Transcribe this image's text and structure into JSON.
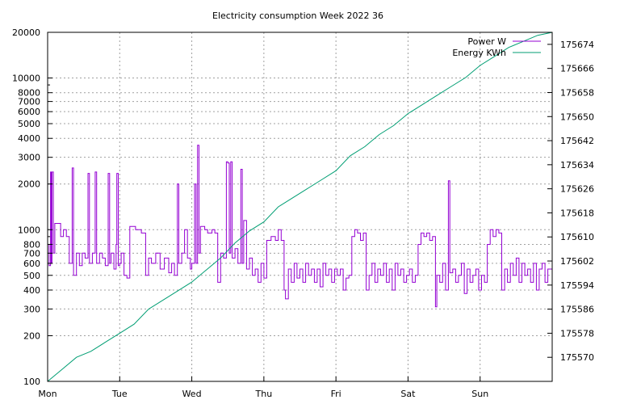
{
  "chart_data": {
    "type": "line",
    "title": "Electricity consumption Week 2022 36",
    "grid": true,
    "legend_position": "top-right",
    "x_axis": {
      "categories": [
        "Mon",
        "Tue",
        "Wed",
        "Thu",
        "Fri",
        "Sat",
        "Sun"
      ],
      "range_days": [
        0,
        7
      ]
    },
    "y_left": {
      "scale": "log",
      "range": [
        100,
        20000
      ],
      "ticks": [
        100,
        200,
        300,
        400,
        500,
        600,
        700,
        800,
        1000,
        2000,
        3000,
        4000,
        5000,
        6000,
        7000,
        8000,
        10000,
        20000
      ]
    },
    "y_right": {
      "scale": "linear",
      "range": [
        175562,
        175678
      ],
      "ticks": [
        175570,
        175578,
        175586,
        175594,
        175602,
        175610,
        175618,
        175626,
        175634,
        175642,
        175650,
        175658,
        175666,
        175674
      ]
    },
    "series": [
      {
        "name": "Power W",
        "axis": "left",
        "color": "#9400d3",
        "points": [
          [
            0.0,
            800
          ],
          [
            0.02,
            580
          ],
          [
            0.04,
            2400
          ],
          [
            0.05,
            600
          ],
          [
            0.06,
            2400
          ],
          [
            0.08,
            700
          ],
          [
            0.1,
            1100
          ],
          [
            0.14,
            1100
          ],
          [
            0.18,
            900
          ],
          [
            0.22,
            1000
          ],
          [
            0.26,
            900
          ],
          [
            0.3,
            600
          ],
          [
            0.34,
            2550
          ],
          [
            0.36,
            500
          ],
          [
            0.4,
            700
          ],
          [
            0.44,
            580
          ],
          [
            0.48,
            700
          ],
          [
            0.52,
            650
          ],
          [
            0.56,
            2350
          ],
          [
            0.58,
            600
          ],
          [
            0.62,
            700
          ],
          [
            0.66,
            2400
          ],
          [
            0.68,
            600
          ],
          [
            0.72,
            700
          ],
          [
            0.76,
            650
          ],
          [
            0.8,
            580
          ],
          [
            0.84,
            2350
          ],
          [
            0.86,
            600
          ],
          [
            0.88,
            700
          ],
          [
            0.92,
            550
          ],
          [
            0.95,
            800
          ],
          [
            0.96,
            2350
          ],
          [
            0.98,
            580
          ],
          [
            1.0,
            600
          ],
          [
            1.02,
            700
          ],
          [
            1.06,
            500
          ],
          [
            1.1,
            480
          ],
          [
            1.14,
            1050
          ],
          [
            1.22,
            1000
          ],
          [
            1.3,
            950
          ],
          [
            1.36,
            500
          ],
          [
            1.4,
            650
          ],
          [
            1.44,
            600
          ],
          [
            1.5,
            700
          ],
          [
            1.56,
            550
          ],
          [
            1.62,
            650
          ],
          [
            1.68,
            520
          ],
          [
            1.72,
            600
          ],
          [
            1.76,
            500
          ],
          [
            1.8,
            2000
          ],
          [
            1.82,
            600
          ],
          [
            1.86,
            700
          ],
          [
            1.9,
            1000
          ],
          [
            1.94,
            650
          ],
          [
            1.98,
            550
          ],
          [
            2.0,
            600
          ],
          [
            2.04,
            2000
          ],
          [
            2.06,
            600
          ],
          [
            2.08,
            3600
          ],
          [
            2.1,
            700
          ],
          [
            2.12,
            1050
          ],
          [
            2.18,
            1000
          ],
          [
            2.22,
            950
          ],
          [
            2.28,
            1000
          ],
          [
            2.32,
            950
          ],
          [
            2.36,
            450
          ],
          [
            2.4,
            700
          ],
          [
            2.44,
            650
          ],
          [
            2.48,
            2800
          ],
          [
            2.5,
            2750
          ],
          [
            2.52,
            700
          ],
          [
            2.54,
            2800
          ],
          [
            2.56,
            650
          ],
          [
            2.6,
            750
          ],
          [
            2.64,
            600
          ],
          [
            2.68,
            2500
          ],
          [
            2.7,
            600
          ],
          [
            2.72,
            1150
          ],
          [
            2.76,
            550
          ],
          [
            2.8,
            650
          ],
          [
            2.84,
            500
          ],
          [
            2.88,
            550
          ],
          [
            2.92,
            450
          ],
          [
            2.96,
            600
          ],
          [
            3.0,
            480
          ],
          [
            3.04,
            850
          ],
          [
            3.1,
            900
          ],
          [
            3.16,
            850
          ],
          [
            3.2,
            1000
          ],
          [
            3.24,
            850
          ],
          [
            3.28,
            400
          ],
          [
            3.3,
            350
          ],
          [
            3.34,
            550
          ],
          [
            3.38,
            450
          ],
          [
            3.42,
            600
          ],
          [
            3.46,
            480
          ],
          [
            3.5,
            550
          ],
          [
            3.54,
            450
          ],
          [
            3.58,
            600
          ],
          [
            3.62,
            500
          ],
          [
            3.66,
            550
          ],
          [
            3.7,
            450
          ],
          [
            3.74,
            550
          ],
          [
            3.78,
            420
          ],
          [
            3.82,
            600
          ],
          [
            3.86,
            500
          ],
          [
            3.9,
            550
          ],
          [
            3.94,
            450
          ],
          [
            3.98,
            550
          ],
          [
            4.02,
            500
          ],
          [
            4.06,
            550
          ],
          [
            4.1,
            400
          ],
          [
            4.14,
            480
          ],
          [
            4.18,
            500
          ],
          [
            4.22,
            900
          ],
          [
            4.26,
            1000
          ],
          [
            4.3,
            950
          ],
          [
            4.34,
            850
          ],
          [
            4.38,
            950
          ],
          [
            4.42,
            400
          ],
          [
            4.46,
            500
          ],
          [
            4.5,
            600
          ],
          [
            4.54,
            450
          ],
          [
            4.58,
            550
          ],
          [
            4.62,
            500
          ],
          [
            4.66,
            600
          ],
          [
            4.7,
            450
          ],
          [
            4.74,
            550
          ],
          [
            4.78,
            400
          ],
          [
            4.82,
            600
          ],
          [
            4.86,
            500
          ],
          [
            4.9,
            550
          ],
          [
            4.94,
            450
          ],
          [
            4.98,
            500
          ],
          [
            5.02,
            550
          ],
          [
            5.06,
            450
          ],
          [
            5.1,
            500
          ],
          [
            5.14,
            800
          ],
          [
            5.18,
            950
          ],
          [
            5.22,
            900
          ],
          [
            5.26,
            950
          ],
          [
            5.3,
            850
          ],
          [
            5.34,
            900
          ],
          [
            5.38,
            310
          ],
          [
            5.4,
            500
          ],
          [
            5.44,
            450
          ],
          [
            5.48,
            600
          ],
          [
            5.52,
            400
          ],
          [
            5.56,
            2100
          ],
          [
            5.58,
            520
          ],
          [
            5.62,
            550
          ],
          [
            5.66,
            450
          ],
          [
            5.7,
            500
          ],
          [
            5.74,
            600
          ],
          [
            5.78,
            380
          ],
          [
            5.82,
            550
          ],
          [
            5.86,
            450
          ],
          [
            5.9,
            500
          ],
          [
            5.94,
            550
          ],
          [
            5.98,
            400
          ],
          [
            6.02,
            500
          ],
          [
            6.06,
            450
          ],
          [
            6.1,
            800
          ],
          [
            6.14,
            1000
          ],
          [
            6.18,
            900
          ],
          [
            6.22,
            1000
          ],
          [
            6.26,
            950
          ],
          [
            6.3,
            400
          ],
          [
            6.34,
            550
          ],
          [
            6.38,
            450
          ],
          [
            6.42,
            600
          ],
          [
            6.46,
            500
          ],
          [
            6.5,
            650
          ],
          [
            6.54,
            450
          ],
          [
            6.58,
            600
          ],
          [
            6.62,
            500
          ],
          [
            6.66,
            550
          ],
          [
            6.7,
            450
          ],
          [
            6.74,
            600
          ],
          [
            6.78,
            400
          ],
          [
            6.82,
            550
          ],
          [
            6.86,
            600
          ],
          [
            6.9,
            450
          ],
          [
            6.94,
            550
          ],
          [
            7.0,
            500
          ]
        ]
      },
      {
        "name": "Energy KWh",
        "axis": "right",
        "color": "#009e73",
        "points": [
          [
            0.0,
            175562
          ],
          [
            0.2,
            175566
          ],
          [
            0.4,
            175570
          ],
          [
            0.6,
            175572
          ],
          [
            0.8,
            175575
          ],
          [
            1.0,
            175578
          ],
          [
            1.2,
            175581
          ],
          [
            1.4,
            175586
          ],
          [
            1.6,
            175589
          ],
          [
            1.8,
            175592
          ],
          [
            2.0,
            175595
          ],
          [
            2.2,
            175599
          ],
          [
            2.4,
            175603
          ],
          [
            2.6,
            175608
          ],
          [
            2.8,
            175612
          ],
          [
            3.0,
            175615
          ],
          [
            3.2,
            175620
          ],
          [
            3.4,
            175623
          ],
          [
            3.6,
            175626
          ],
          [
            3.8,
            175629
          ],
          [
            4.0,
            175632
          ],
          [
            4.2,
            175637
          ],
          [
            4.4,
            175640
          ],
          [
            4.6,
            175644
          ],
          [
            4.8,
            175647
          ],
          [
            5.0,
            175651
          ],
          [
            5.2,
            175654
          ],
          [
            5.4,
            175657
          ],
          [
            5.6,
            175660
          ],
          [
            5.8,
            175663
          ],
          [
            6.0,
            175667
          ],
          [
            6.2,
            175670
          ],
          [
            6.4,
            175673
          ],
          [
            6.6,
            175675
          ],
          [
            6.8,
            175677
          ],
          [
            7.0,
            175678
          ]
        ]
      }
    ]
  }
}
